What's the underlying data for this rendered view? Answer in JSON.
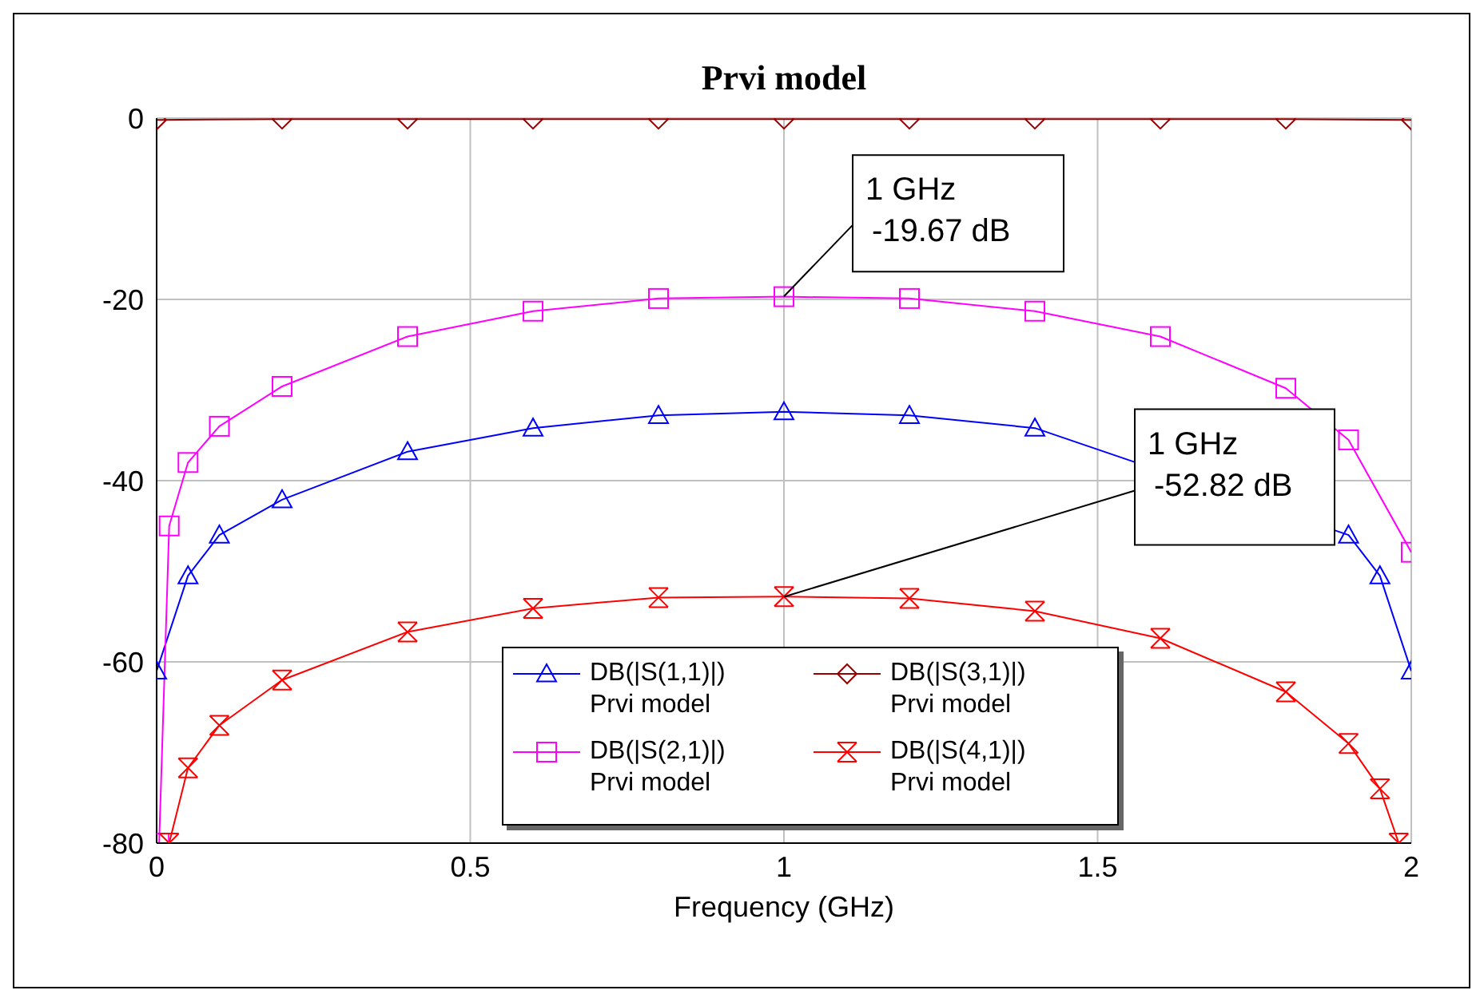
{
  "chart_data": {
    "type": "line",
    "title": "Prvi model",
    "xlabel": "Frequency (GHz)",
    "xlim": [
      0,
      2
    ],
    "xticks": [
      0,
      0.5,
      1,
      1.5,
      2
    ],
    "ylim": [
      -80,
      0
    ],
    "yticks": [
      0,
      -20,
      -40,
      -60,
      -80
    ],
    "grid": true,
    "legend": "bottom",
    "line_style": "solid",
    "annotations": [
      {
        "text": "1 GHz\n-19.67 dB",
        "x": 1,
        "y": -19.67
      },
      {
        "text": "1 GHz\n-52.82 dB",
        "x": 1,
        "y": -52.82
      }
    ],
    "series": [
      {
        "name": "DB(|S(1,1)|)\nPrvi model",
        "color": "#0000ff",
        "marker": "triangle",
        "x": [
          0,
          0.05,
          0.1,
          0.2,
          0.4,
          0.6,
          0.8,
          1,
          1.2,
          1.4,
          1.6,
          1.8,
          1.9,
          1.95,
          2
        ],
        "values": [
          -61,
          -50.5,
          -46,
          -42.1,
          -36.8,
          -34.2,
          -32.8,
          -32.4,
          -32.8,
          -34.2,
          null,
          null,
          -46,
          -50.5,
          -61
        ]
      },
      {
        "name": "DB(|S(3,1)|)\nPrvi model",
        "color": "#990000",
        "marker": "diamond",
        "x": [
          0,
          0.2,
          0.4,
          0.6,
          0.8,
          1,
          1.2,
          1.4,
          1.6,
          1.8,
          2
        ],
        "values": [
          -0.2,
          -0.1,
          -0.1,
          -0.1,
          -0.1,
          -0.1,
          -0.1,
          -0.1,
          -0.1,
          -0.1,
          -0.2
        ]
      },
      {
        "name": "DB(|S(2,1)|)\nPrvi model",
        "color": "#ff00ff",
        "marker": "square",
        "x": [
          0.004,
          0.02,
          0.05,
          0.1,
          0.2,
          0.4,
          0.6,
          0.8,
          1,
          1.2,
          1.4,
          1.6,
          1.8,
          1.9,
          2
        ],
        "values": [
          -80,
          -45,
          -38,
          -34,
          -29.6,
          -24.1,
          -21.3,
          -19.9,
          -19.7,
          -19.9,
          -21.3,
          -24.1,
          -29.8,
          -35.5,
          -47.9
        ]
      },
      {
        "name": "DB(|S(4,1)|)\nPrvi model",
        "color": "#ff0000",
        "marker": "cross",
        "x": [
          0.02,
          0.05,
          0.1,
          0.2,
          0.4,
          0.6,
          0.8,
          1,
          1.2,
          1.4,
          1.6,
          1.8,
          1.9,
          1.95,
          1.98
        ],
        "values": [
          -80,
          -71.7,
          -67,
          -62,
          -56.7,
          -54.1,
          -52.9,
          -52.8,
          -53,
          -54.4,
          -57.4,
          -63.3,
          -69,
          -74,
          -80
        ]
      }
    ]
  }
}
